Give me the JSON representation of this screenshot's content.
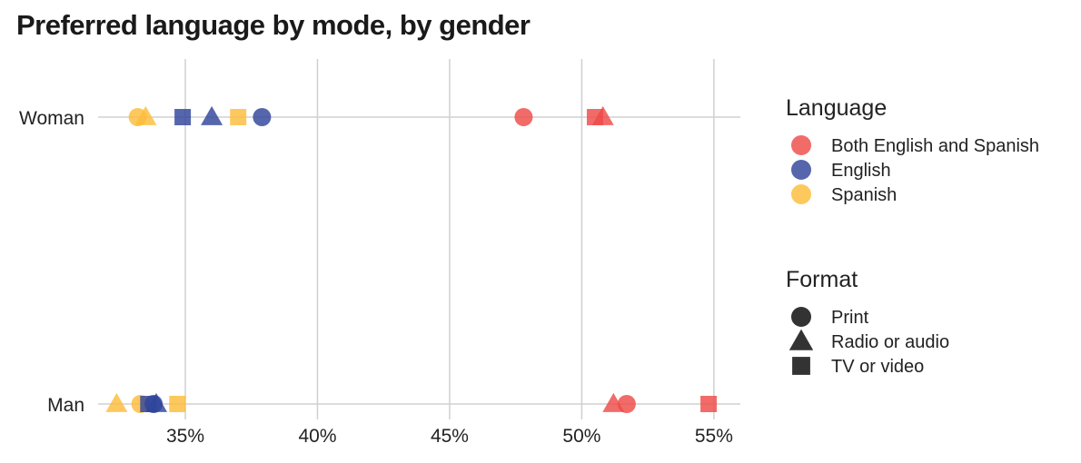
{
  "chart_data": {
    "type": "scatter",
    "title": "Preferred language by mode, by gender",
    "xlabel": "",
    "ylabel": "",
    "xlim": [
      31.7,
      56
    ],
    "x_ticks": [
      35,
      40,
      45,
      50,
      55
    ],
    "x_tick_format": "{v}%",
    "categories": [
      "Woman",
      "Man"
    ],
    "grid": "vertical",
    "colors": {
      "Both English and Spanish": "#ee4b47",
      "English": "#2f449b",
      "Spanish": "#fdbd3b"
    },
    "legend_language": {
      "title": "Language",
      "items": [
        {
          "label": "Both English and Spanish",
          "color": "#ee4b47"
        },
        {
          "label": "English",
          "color": "#2f449b"
        },
        {
          "label": "Spanish",
          "color": "#fdbd3b"
        }
      ]
    },
    "legend_format": {
      "title": "Format",
      "items": [
        {
          "label": "Print",
          "shape": "circle"
        },
        {
          "label": "Radio or audio",
          "shape": "triangle"
        },
        {
          "label": "TV or video",
          "shape": "square"
        }
      ]
    },
    "points": [
      {
        "gender": "Woman",
        "language": "Spanish",
        "format": "Print",
        "x": 33.2
      },
      {
        "gender": "Woman",
        "language": "Spanish",
        "format": "Radio or audio",
        "x": 33.5
      },
      {
        "gender": "Woman",
        "language": "English",
        "format": "TV or video",
        "x": 34.9
      },
      {
        "gender": "Woman",
        "language": "English",
        "format": "Radio or audio",
        "x": 36.0
      },
      {
        "gender": "Woman",
        "language": "Spanish",
        "format": "TV or video",
        "x": 37.0
      },
      {
        "gender": "Woman",
        "language": "English",
        "format": "Print",
        "x": 37.9
      },
      {
        "gender": "Woman",
        "language": "Both English and Spanish",
        "format": "Print",
        "x": 47.8
      },
      {
        "gender": "Woman",
        "language": "Both English and Spanish",
        "format": "TV or video",
        "x": 50.5
      },
      {
        "gender": "Woman",
        "language": "Both English and Spanish",
        "format": "Radio or audio",
        "x": 50.8
      },
      {
        "gender": "Man",
        "language": "Spanish",
        "format": "Radio or audio",
        "x": 32.4
      },
      {
        "gender": "Man",
        "language": "Spanish",
        "format": "Print",
        "x": 33.3
      },
      {
        "gender": "Man",
        "language": "English",
        "format": "TV or video",
        "x": 33.6
      },
      {
        "gender": "Man",
        "language": "English",
        "format": "Print",
        "x": 33.8
      },
      {
        "gender": "Man",
        "language": "English",
        "format": "Radio or audio",
        "x": 33.9
      },
      {
        "gender": "Man",
        "language": "Spanish",
        "format": "TV or video",
        "x": 34.7
      },
      {
        "gender": "Man",
        "language": "Both English and Spanish",
        "format": "Radio or audio",
        "x": 51.2
      },
      {
        "gender": "Man",
        "language": "Both English and Spanish",
        "format": "Print",
        "x": 51.7
      },
      {
        "gender": "Man",
        "language": "Both English and Spanish",
        "format": "TV or video",
        "x": 54.8
      }
    ]
  }
}
